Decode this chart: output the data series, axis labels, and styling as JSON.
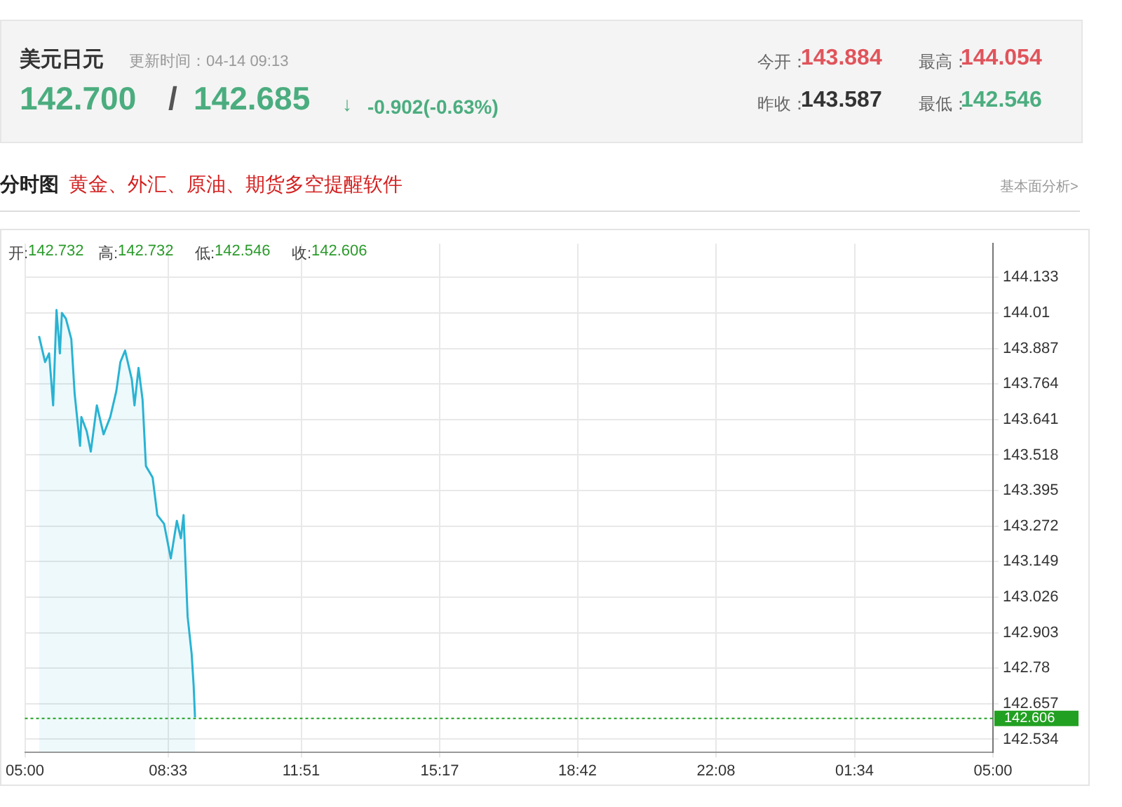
{
  "chart_data": {
    "type": "area",
    "title": "美元日元",
    "subtitle": "更新时间：04-14 09:13",
    "annotations": [
      "142.700",
      "/",
      "142.685",
      "↓",
      "-0.902(-0.63%)",
      "今开：",
      "143.884",
      "最高：",
      "144.054",
      "昨收：",
      "143.587",
      "最低：",
      "142.546",
      "分时图",
      "黄金、外汇、原油、期货多空提醒软件",
      "基本面分析>",
      "开:",
      "142.732",
      "高:",
      "142.732",
      "低:",
      "142.546",
      "收:",
      "142.606"
    ],
    "series": [
      {
        "color": "#29b3d3",
        "x": [
          "--04-14T05:21",
          "--04-14T05:30",
          "--04-14T05:36",
          "--04-14T05:42",
          "--04-14T05:47",
          "--04-14T05:52",
          "--04-14T05:55",
          "--04-14T06:01",
          "--04-14T06:09",
          "--04-14T06:14",
          "--04-14T06:22",
          "--04-14T06:24",
          "--04-14T06:32",
          "--04-14T06:38",
          "--04-14T06:47",
          "--04-14T06:57",
          "--04-14T07:07",
          "--04-14T07:16",
          "--04-14T07:22",
          "--04-14T07:29",
          "--04-14T07:39",
          "--04-14T07:43",
          "--04-14T07:49",
          "--04-14T07:55",
          "--04-14T08:00",
          "--04-14T08:10",
          "--04-14T08:17",
          "--04-14T08:27",
          "--04-14T08:37",
          "--04-14T08:46",
          "--04-14T08:52",
          "--04-14T08:56",
          "--04-14T09:02",
          "--04-14T09:08",
          "--04-14T09:11",
          "--04-14T09:13"
        ],
        "values": [
          143.93,
          143.84,
          143.87,
          143.69,
          144.02,
          143.87,
          144.01,
          143.99,
          143.92,
          143.73,
          143.55,
          143.65,
          143.6,
          143.53,
          143.69,
          143.59,
          143.65,
          143.74,
          143.84,
          143.88,
          143.78,
          143.69,
          143.82,
          143.71,
          143.48,
          143.44,
          143.31,
          143.28,
          143.16,
          143.29,
          143.23,
          143.31,
          142.96,
          142.83,
          142.72,
          142.61
        ]
      }
    ],
    "xlim": [
      "--04-14T05:00",
      "--04-15T05:00"
    ],
    "xticks": [
      {
        "value": "--04-14T05:00",
        "label": "05:00"
      },
      {
        "value": "--04-14T08:33",
        "label": "08:33"
      },
      {
        "value": "--04-14T11:51",
        "label": "11:51"
      },
      {
        "value": "--04-14T15:17",
        "label": "15:17"
      },
      {
        "value": "--04-14T18:42",
        "label": "18:42"
      },
      {
        "value": "--04-14T22:08",
        "label": "22:08"
      },
      {
        "value": "--04-15T01:34",
        "label": "01:34"
      },
      {
        "value": "--04-15T05:00",
        "label": "05:00"
      }
    ],
    "ylim": [
      142.49,
      144.25
    ],
    "yticks": [
      142.534,
      142.657,
      142.78,
      142.903,
      143.026,
      143.149,
      143.272,
      143.395,
      143.518,
      143.641,
      143.764,
      143.887,
      144.01,
      144.133
    ],
    "ref_lines": [
      {
        "axis": "y",
        "value": 142.606,
        "label": "142.606",
        "color": "#22a022",
        "line_style": "dotted"
      }
    ],
    "grid": true,
    "legend": false,
    "marker": "none",
    "line_style": "solid"
  }
}
